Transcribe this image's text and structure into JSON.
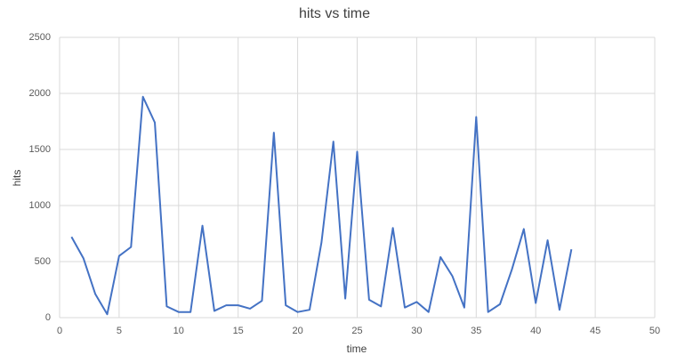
{
  "chart_data": {
    "type": "line",
    "title": "hits vs time",
    "x_label": "time",
    "y_label": "hits",
    "x": [
      1,
      2,
      3,
      4,
      5,
      6,
      7,
      8,
      9,
      10,
      11,
      12,
      13,
      14,
      15,
      16,
      17,
      18,
      19,
      20,
      21,
      22,
      23,
      24,
      25,
      26,
      27,
      28,
      29,
      30,
      31,
      32,
      33,
      34,
      35,
      36,
      37,
      38,
      39,
      40,
      41,
      42,
      43
    ],
    "series": [
      {
        "name": "hits",
        "color": "#4472c4",
        "values": [
          720,
          530,
          210,
          30,
          550,
          630,
          1970,
          1740,
          100,
          50,
          50,
          820,
          60,
          110,
          110,
          80,
          150,
          1650,
          110,
          50,
          70,
          670,
          1570,
          170,
          1480,
          160,
          100,
          800,
          90,
          140,
          50,
          540,
          370,
          90,
          1790,
          50,
          120,
          430,
          790,
          130,
          690,
          70,
          610
        ]
      }
    ],
    "xlim": [
      0,
      50
    ],
    "xticks": [
      0,
      5,
      10,
      15,
      20,
      25,
      30,
      35,
      40,
      45,
      50
    ],
    "ylim": [
      0,
      2500
    ],
    "yticks": [
      0,
      500,
      1000,
      1500,
      2000,
      2500
    ],
    "grid": true
  }
}
